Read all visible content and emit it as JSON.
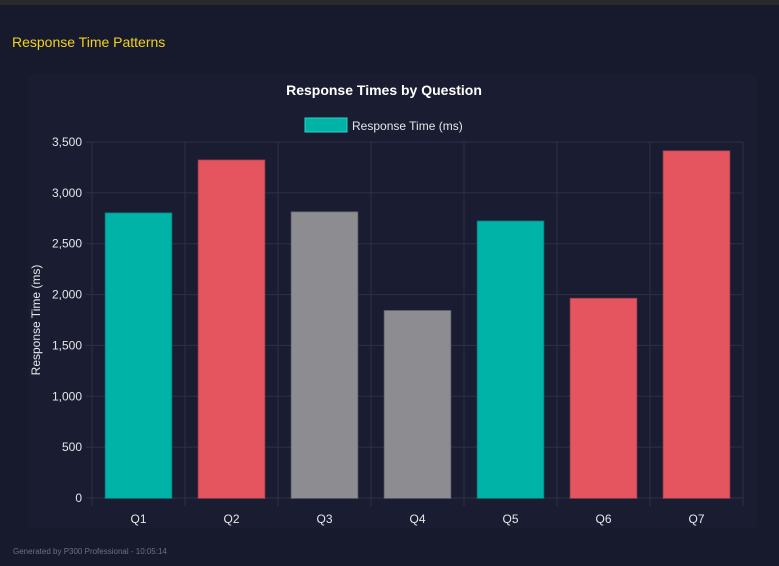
{
  "section_title": "Response Time Patterns",
  "footer": "Generated by P300 Professional - 10:05:14",
  "chart_data": {
    "type": "bar",
    "title": "Response Times by Question",
    "legend": {
      "label": "Response Time (ms)",
      "color": "#00b3a7",
      "placement": "top"
    },
    "xlabel": "",
    "ylabel": "Response Time (ms)",
    "categories": [
      "Q1",
      "Q2",
      "Q3",
      "Q4",
      "Q5",
      "Q6",
      "Q7"
    ],
    "values": [
      2800,
      3320,
      2810,
      1840,
      2720,
      1960,
      3410
    ],
    "colors": [
      "#00b3a7",
      "#e5555f",
      "#8d8c90",
      "#8d8c90",
      "#00b3a7",
      "#e5555f",
      "#e5555f"
    ],
    "ylim": [
      0,
      3500
    ],
    "yticks": [
      0,
      500,
      1000,
      1500,
      2000,
      2500,
      3000,
      3500
    ],
    "ytick_labels": [
      "0",
      "500",
      "1,000",
      "1,500",
      "2,000",
      "2,500",
      "3,000",
      "3,500"
    ],
    "grid": true
  }
}
